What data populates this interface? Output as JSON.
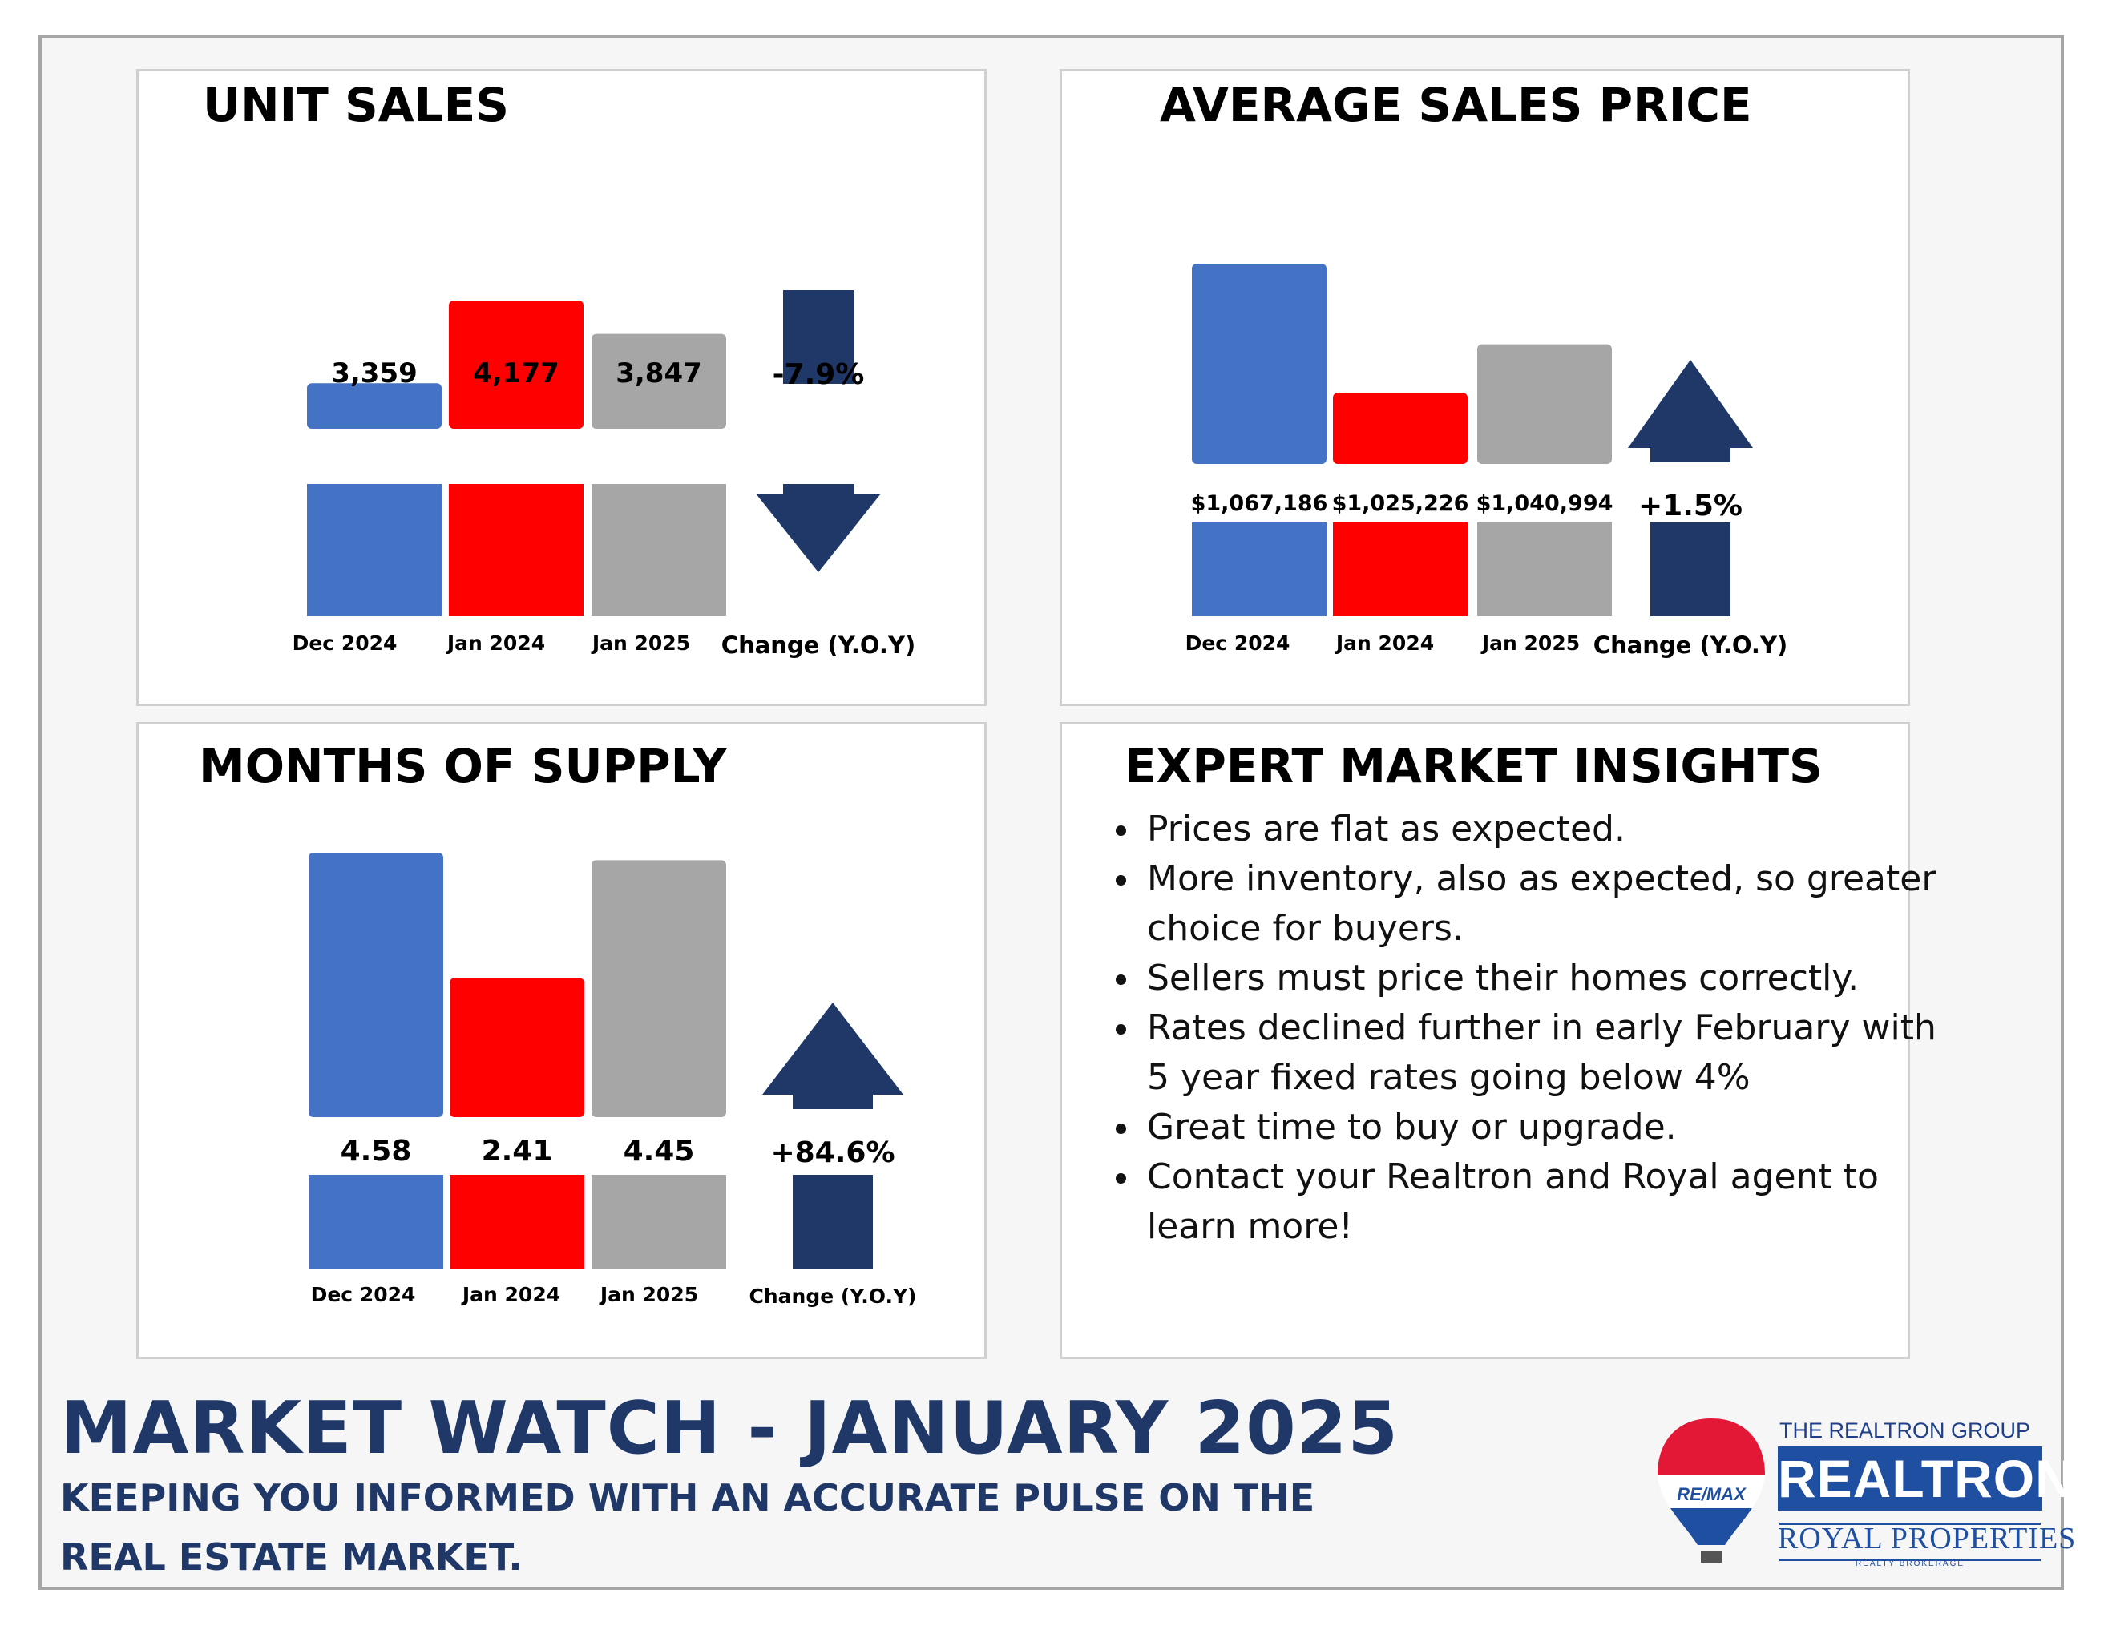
{
  "colors": {
    "dec_2024": "#4472c4",
    "jan_2024": "#ff0000",
    "jan_2025": "#a6a6a6",
    "arrow": "#1f3868",
    "footer_text": "#1f3868"
  },
  "panels": {
    "unit_sales": {
      "title": "UNIT SALES"
    },
    "avg_price": {
      "title": "AVERAGE SALES PRICE"
    },
    "supply": {
      "title": "MONTHS OF SUPPLY"
    },
    "insights": {
      "title": "EXPERT MARKET INSIGHTS",
      "items": [
        "Prices are flat as expected.",
        "More inventory, also as expected, so greater choice for buyers.",
        "Sellers must price their homes correctly.",
        "Rates declined further in early February with 5 year fixed rates going below 4%",
        "Great time to buy or upgrade.",
        "Contact your Realtron and Royal agent to learn more!"
      ]
    }
  },
  "chart_data": [
    {
      "type": "bar",
      "title": "UNIT SALES",
      "categories": [
        "Dec 2024",
        "Jan 2024",
        "Jan 2025"
      ],
      "values": [
        3359,
        4177,
        3847
      ],
      "value_labels": [
        "3,359",
        "4,177",
        "3,847"
      ],
      "change_label": "Change (Y.O.Y)",
      "change_value": "-7.9%",
      "change_direction": "down",
      "colors": [
        "#4472c4",
        "#ff0000",
        "#a6a6a6"
      ]
    },
    {
      "type": "bar",
      "title": "AVERAGE SALES PRICE",
      "categories": [
        "Dec 2024",
        "Jan 2024",
        "Jan 2025"
      ],
      "values": [
        1067186,
        1025226,
        1040994
      ],
      "value_labels": [
        "$1,067,186",
        "$1,025,226",
        "$1,040,994"
      ],
      "change_label": "Change (Y.O.Y)",
      "change_value": "+1.5%",
      "change_direction": "up",
      "colors": [
        "#4472c4",
        "#ff0000",
        "#a6a6a6"
      ]
    },
    {
      "type": "bar",
      "title": "MONTHS OF SUPPLY",
      "categories": [
        "Dec 2024",
        "Jan 2024",
        "Jan 2025"
      ],
      "values": [
        4.58,
        2.41,
        4.45
      ],
      "value_labels": [
        "4.58",
        "2.41",
        "4.45"
      ],
      "change_label": "Change (Y.O.Y)",
      "change_value": "+84.6%",
      "change_direction": "up",
      "colors": [
        "#4472c4",
        "#ff0000",
        "#a6a6a6"
      ]
    }
  ],
  "footer": {
    "title": "MARKET WATCH - JANUARY 2025",
    "subtitle": "KEEPING YOU INFORMED WITH AN ACCURATE PULSE ON THE REAL ESTATE MARKET."
  },
  "logo": {
    "balloon_text": "RE/MAX",
    "group_name": "THE REALTRON GROUP",
    "brand": "REALTRON",
    "sub_brand": "ROYAL PROPERTIES",
    "brokerage": "REALTY BROKERAGE"
  }
}
